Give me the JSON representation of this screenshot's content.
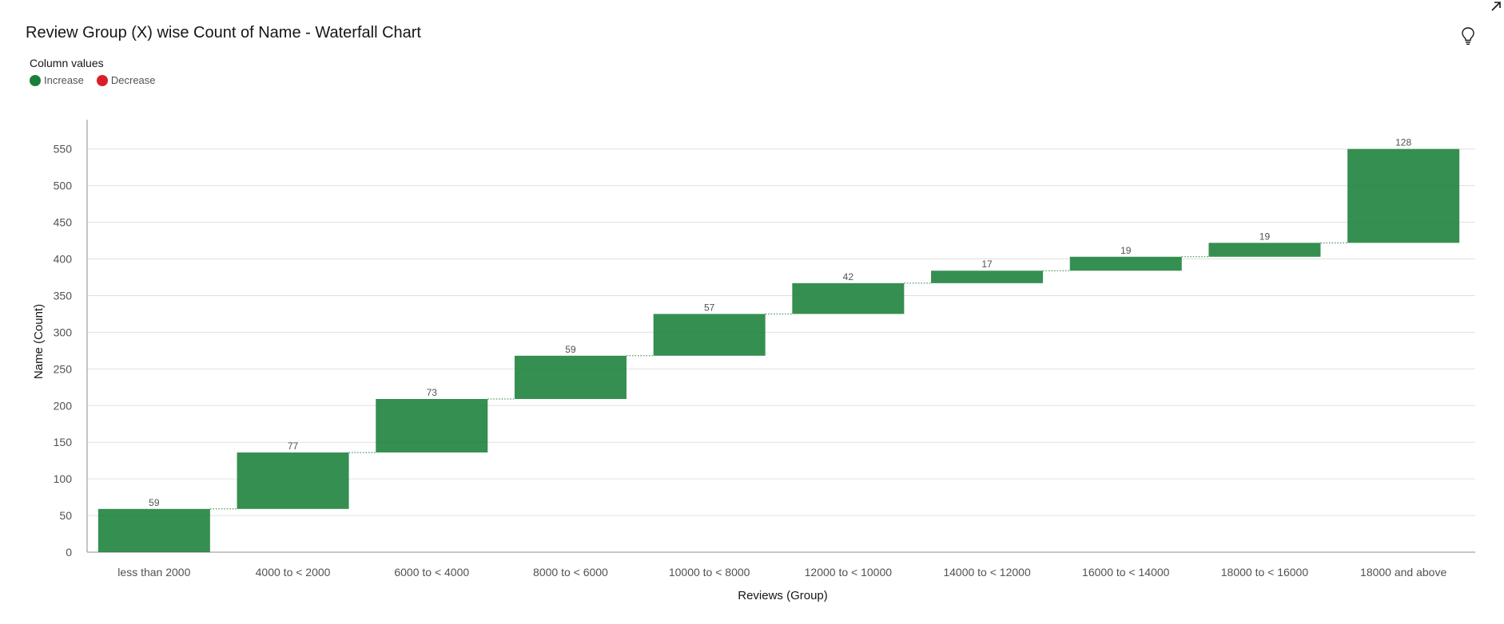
{
  "header": {
    "title": "Review Group (X) wise Count of Name - Waterfall Chart"
  },
  "icons": {
    "hint": "lightbulb-icon",
    "expand": "expand-arrow-icon"
  },
  "legend": {
    "title": "Column values",
    "items": [
      {
        "label": "Increase",
        "color": "#198038"
      },
      {
        "label": "Decrease",
        "color": "#da1e28"
      }
    ]
  },
  "chart_data": {
    "type": "bar",
    "subtype": "waterfall",
    "xlabel": "Reviews (Group)",
    "ylabel": "Name (Count)",
    "ylim": [
      0,
      590
    ],
    "yticks": [
      0,
      50,
      100,
      150,
      200,
      250,
      300,
      350,
      400,
      450,
      500,
      550
    ],
    "grid": true,
    "legend_position": "top-left",
    "categories": [
      "less than 2000",
      "4000 to < 2000",
      "6000 to < 4000",
      "8000 to < 6000",
      "10000 to < 8000",
      "12000 to < 10000",
      "14000 to < 12000",
      "16000 to < 14000",
      "18000 to < 16000",
      "18000 and above"
    ],
    "values": [
      59,
      77,
      73,
      59,
      57,
      42,
      17,
      19,
      19,
      128
    ],
    "colors": {
      "increase": "#198038",
      "decrease": "#da1e28"
    }
  }
}
